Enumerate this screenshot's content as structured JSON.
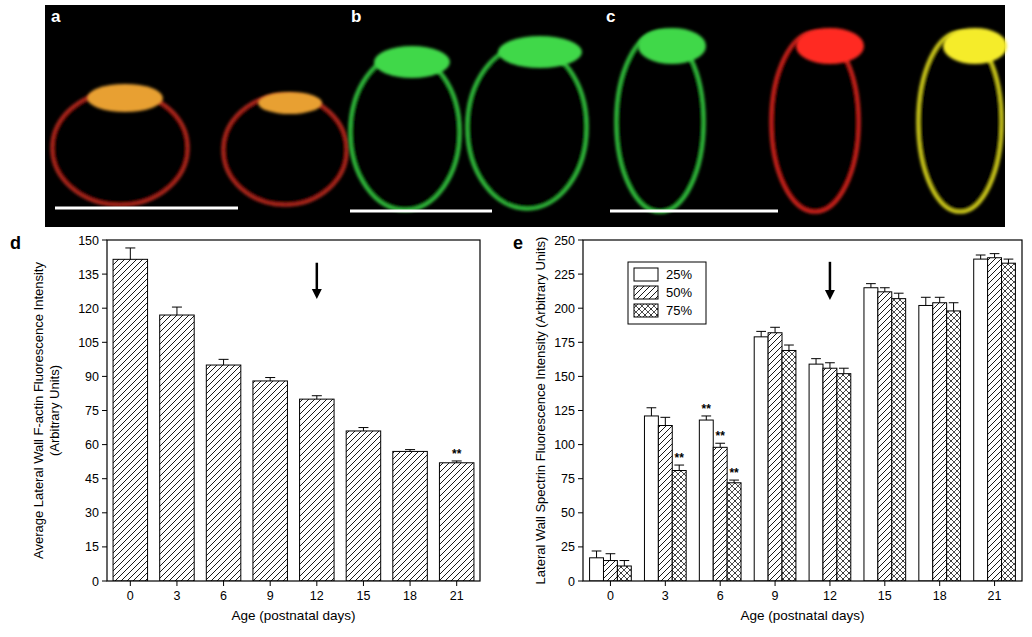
{
  "figure": {
    "image_panels": [
      {
        "label": "a"
      },
      {
        "label": "b"
      },
      {
        "label": "c"
      }
    ]
  },
  "chart_data": [
    {
      "type": "bar",
      "title": "d",
      "x_label": "Age (postnatal days)",
      "y_label": [
        "Average Lateral Wall F-actin Fluorescence Intensity",
        "(Arbitrary Units)"
      ],
      "categories": [
        "0",
        "3",
        "6",
        "9",
        "12",
        "15",
        "18",
        "21"
      ],
      "values": [
        141.5,
        117,
        95,
        88,
        80,
        66,
        57,
        52
      ],
      "errors": [
        5,
        3.5,
        2.5,
        1.5,
        1.5,
        1.5,
        0.8,
        0.8
      ],
      "color": "#ffffff",
      "ylim": [
        0,
        150
      ],
      "yticks": [
        0,
        15,
        30,
        45,
        60,
        75,
        90,
        105,
        120,
        135,
        150
      ],
      "annotations": [
        {
          "x": "12",
          "marker": "arrow",
          "y": [
            140,
            124
          ]
        },
        {
          "x": "21",
          "text": "**"
        }
      ]
    },
    {
      "type": "bar",
      "title": "e",
      "x_label": "Age (postnatal days)",
      "y_label": "Lateral Wall Spectrin Fluorescence Intensity (Arbitrary Units)",
      "categories": [
        "0",
        "3",
        "6",
        "9",
        "12",
        "15",
        "18",
        "21"
      ],
      "series": [
        {
          "name": "25%",
          "color": "#ffffff",
          "values": [
            17,
            121,
            118,
            179,
            159,
            215,
            202,
            236
          ],
          "errors": [
            5,
            6,
            3,
            4,
            4,
            3,
            6,
            3
          ]
        },
        {
          "name": "50%",
          "color": "#ffffff",
          "values": [
            15,
            114,
            98,
            182,
            156,
            212,
            204,
            237
          ],
          "errors": [
            5,
            6,
            3,
            4,
            4,
            3,
            4,
            3
          ]
        },
        {
          "name": "75%",
          "color": "#ffffff",
          "values": [
            11,
            81,
            72,
            169,
            152,
            207,
            198,
            233
          ],
          "errors": [
            4,
            4,
            2,
            4,
            4,
            4,
            6,
            3
          ]
        }
      ],
      "legend": "top-left",
      "ylim": [
        0,
        250
      ],
      "yticks": [
        0,
        25,
        50,
        75,
        100,
        125,
        150,
        175,
        200,
        225,
        250
      ],
      "annotations": [
        {
          "x": "12",
          "marker": "arrow",
          "y": [
            234,
            206
          ]
        },
        {
          "x": "3",
          "series": 2,
          "text": "**"
        },
        {
          "x": "6",
          "series": 0,
          "text": "**"
        },
        {
          "x": "6",
          "series": 1,
          "text": "**"
        },
        {
          "x": "6",
          "series": 2,
          "text": "**"
        }
      ]
    }
  ]
}
